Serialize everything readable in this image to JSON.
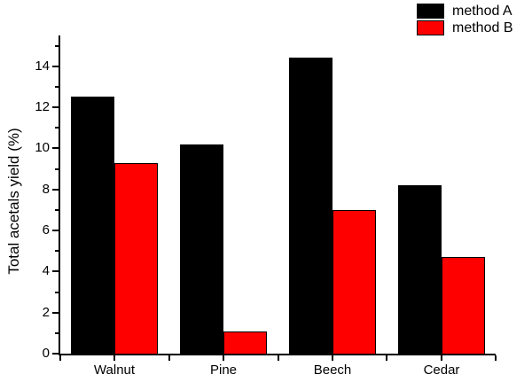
{
  "chart_data": {
    "type": "bar",
    "title": "",
    "categories": [
      "Walnut",
      "Pine",
      "Beech",
      "Cedar"
    ],
    "series": [
      {
        "name": "method A",
        "color": "#000000",
        "values": [
          12.5,
          10.2,
          14.4,
          8.2
        ]
      },
      {
        "name": "method B",
        "color": "#ff0000",
        "values": [
          9.3,
          1.1,
          7.0,
          4.7
        ]
      }
    ],
    "xlabel": "",
    "ylabel": "Total acetals yield (%)",
    "ylim": [
      0,
      15.5
    ],
    "yticks_major": [
      0,
      2,
      4,
      6,
      8,
      10,
      12,
      14
    ],
    "yticks_minor": [
      1,
      3,
      5,
      7,
      9,
      11,
      13,
      15
    ],
    "grid": false,
    "legend_position": "top-right",
    "bar_edge_color": "#000000",
    "axis_color": "#000000",
    "background_color": "#ffffff"
  }
}
